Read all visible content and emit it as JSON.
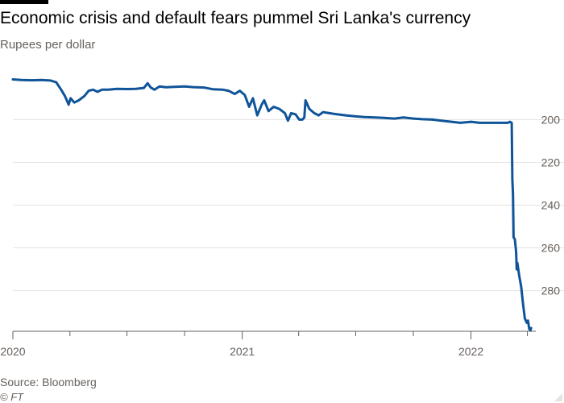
{
  "header": {
    "title": "Economic crisis and default fears pummel Sri Lanka's currency",
    "subtitle": "Rupees per dollar"
  },
  "footer": {
    "source": "Source: Bloomberg",
    "copyright": "© FT"
  },
  "colors": {
    "line": "#0f5499",
    "grid": "#e6e3e1",
    "axis": "#66605c",
    "text": "#33302e"
  },
  "chart_data": {
    "type": "line",
    "title": "Economic crisis and default fears pummel Sri Lanka's currency",
    "subtitle": "Rupees per dollar",
    "xlabel": "",
    "ylabel": "",
    "y_inverted": true,
    "y_axis_side": "right",
    "ylim": [
      181,
      299
    ],
    "yticks": [
      200,
      220,
      240,
      260,
      280
    ],
    "xlim": [
      "2020-01-01",
      "2022-04-08"
    ],
    "xticks": [
      {
        "value": "2020-01-01",
        "label": "2020"
      },
      {
        "value": "2021-01-01",
        "label": "2021"
      },
      {
        "value": "2022-01-01",
        "label": "2022"
      }
    ],
    "minor_xticks": [
      "2020-04-01",
      "2020-07-01",
      "2020-10-01",
      "2021-04-01",
      "2021-07-01",
      "2021-10-01",
      "2022-04-01"
    ],
    "grid": true,
    "series": [
      {
        "name": "",
        "color": "#0f5499",
        "points": [
          [
            "2020-01-01",
            181.2
          ],
          [
            "2020-01-15",
            181.5
          ],
          [
            "2020-02-01",
            181.6
          ],
          [
            "2020-02-15",
            181.5
          ],
          [
            "2020-03-01",
            181.7
          ],
          [
            "2020-03-10",
            182.5
          ],
          [
            "2020-03-18",
            186.0
          ],
          [
            "2020-03-24",
            189.0
          ],
          [
            "2020-03-30",
            193.0
          ],
          [
            "2020-04-02",
            190.0
          ],
          [
            "2020-04-08",
            192.0
          ],
          [
            "2020-04-15",
            191.0
          ],
          [
            "2020-04-24",
            189.0
          ],
          [
            "2020-05-01",
            186.5
          ],
          [
            "2020-05-08",
            186.0
          ],
          [
            "2020-05-15",
            187.0
          ],
          [
            "2020-05-22",
            186.0
          ],
          [
            "2020-06-01",
            186.0
          ],
          [
            "2020-06-15",
            185.6
          ],
          [
            "2020-07-01",
            185.7
          ],
          [
            "2020-07-15",
            185.6
          ],
          [
            "2020-07-28",
            185.2
          ],
          [
            "2020-08-03",
            183.0
          ],
          [
            "2020-08-08",
            185.0
          ],
          [
            "2020-08-14",
            186.0
          ],
          [
            "2020-08-22",
            184.5
          ],
          [
            "2020-09-01",
            184.9
          ],
          [
            "2020-09-15",
            184.7
          ],
          [
            "2020-10-01",
            184.5
          ],
          [
            "2020-10-15",
            184.8
          ],
          [
            "2020-11-01",
            185.0
          ],
          [
            "2020-11-15",
            185.8
          ],
          [
            "2020-12-01",
            186.0
          ],
          [
            "2020-12-10",
            186.5
          ],
          [
            "2020-12-20",
            188.0
          ],
          [
            "2020-12-28",
            186.5
          ],
          [
            "2021-01-05",
            188.5
          ],
          [
            "2021-01-12",
            194.0
          ],
          [
            "2021-01-18",
            190.0
          ],
          [
            "2021-01-25",
            198.0
          ],
          [
            "2021-02-01",
            193.0
          ],
          [
            "2021-02-05",
            191.0
          ],
          [
            "2021-02-12",
            196.0
          ],
          [
            "2021-02-20",
            194.0
          ],
          [
            "2021-03-01",
            195.0
          ],
          [
            "2021-03-10",
            197.0
          ],
          [
            "2021-03-15",
            200.5
          ],
          [
            "2021-03-20",
            197.0
          ],
          [
            "2021-03-27",
            197.5
          ],
          [
            "2021-04-02",
            200.0
          ],
          [
            "2021-04-07",
            200.0
          ],
          [
            "2021-04-10",
            199.0
          ],
          [
            "2021-04-12",
            191.0
          ],
          [
            "2021-04-18",
            195.0
          ],
          [
            "2021-04-26",
            197.0
          ],
          [
            "2021-05-03",
            198.0
          ],
          [
            "2021-05-10",
            196.5
          ],
          [
            "2021-05-20",
            197.0
          ],
          [
            "2021-06-01",
            197.5
          ],
          [
            "2021-06-15",
            198.0
          ],
          [
            "2021-07-01",
            198.5
          ],
          [
            "2021-07-15",
            198.8
          ],
          [
            "2021-08-01",
            199.0
          ],
          [
            "2021-08-15",
            199.2
          ],
          [
            "2021-09-01",
            199.5
          ],
          [
            "2021-09-15",
            199.0
          ],
          [
            "2021-10-01",
            199.5
          ],
          [
            "2021-10-15",
            199.8
          ],
          [
            "2021-11-01",
            200.0
          ],
          [
            "2021-11-15",
            200.5
          ],
          [
            "2021-12-01",
            201.0
          ],
          [
            "2021-12-15",
            201.5
          ],
          [
            "2022-01-01",
            201.0
          ],
          [
            "2022-01-15",
            201.5
          ],
          [
            "2022-02-01",
            201.5
          ],
          [
            "2022-02-15",
            201.5
          ],
          [
            "2022-03-01",
            201.5
          ],
          [
            "2022-03-04",
            201.0
          ],
          [
            "2022-03-07",
            201.5
          ],
          [
            "2022-03-08",
            228.0
          ],
          [
            "2022-03-09",
            235.0
          ],
          [
            "2022-03-10",
            255.0
          ],
          [
            "2022-03-12",
            256.0
          ],
          [
            "2022-03-14",
            262.0
          ],
          [
            "2022-03-15",
            270.0
          ],
          [
            "2022-03-16",
            267.0
          ],
          [
            "2022-03-19",
            273.0
          ],
          [
            "2022-03-22",
            278.0
          ],
          [
            "2022-03-25",
            286.0
          ],
          [
            "2022-03-28",
            293.0
          ],
          [
            "2022-03-31",
            295.0
          ],
          [
            "2022-04-02",
            294.0
          ],
          [
            "2022-04-04",
            298.0
          ],
          [
            "2022-04-06",
            298.5
          ],
          [
            "2022-04-07",
            297.5
          ]
        ]
      }
    ]
  }
}
